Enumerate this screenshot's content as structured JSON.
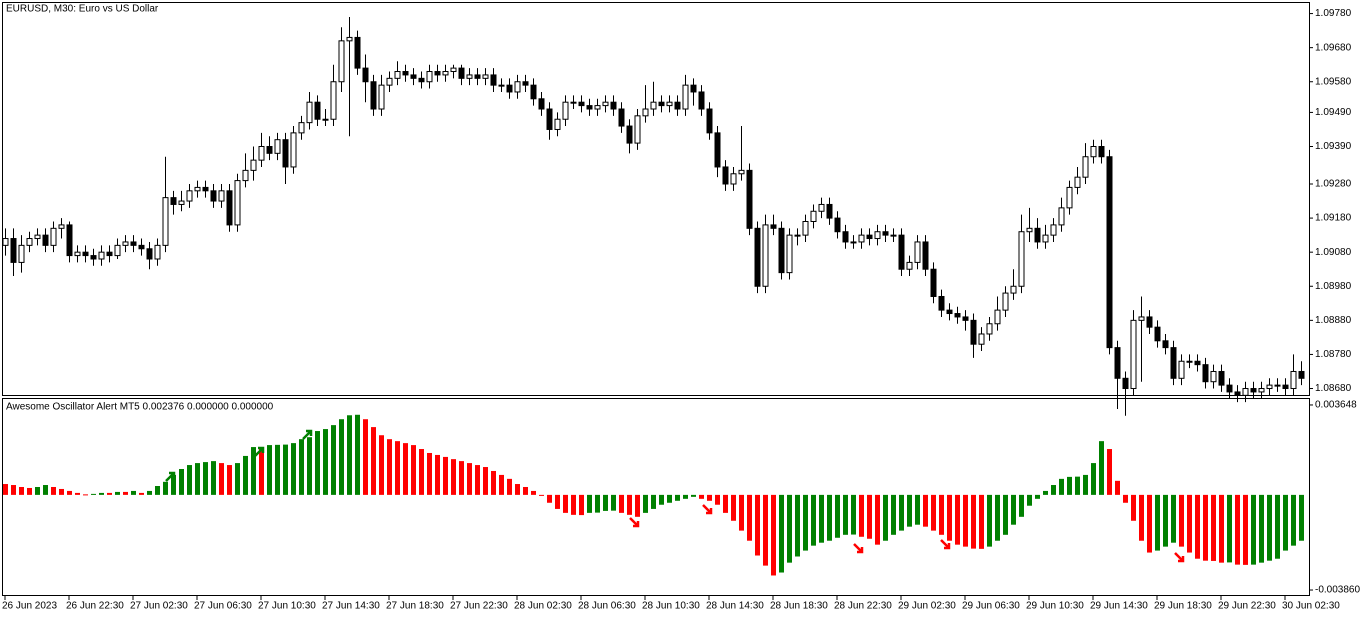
{
  "chart_data": [
    {
      "type": "candlestick",
      "title": "EURUSD, M30:  Euro vs US Dollar",
      "up_color": "#ffffff",
      "down_color": "#000000",
      "outline_color": "#000000",
      "ylim": [
        1.08661,
        1.09811
      ],
      "yticks": [
        {
          "value": 1.0978,
          "label": "1.09780"
        },
        {
          "value": 1.0968,
          "label": "1.09680"
        },
        {
          "value": 1.0958,
          "label": "1.09580"
        },
        {
          "value": 1.0949,
          "label": "1.09490"
        },
        {
          "value": 1.0939,
          "label": "1.09390"
        },
        {
          "value": 1.0928,
          "label": "1.09280"
        },
        {
          "value": 1.0918,
          "label": "1.09180"
        },
        {
          "value": 1.0908,
          "label": "1.09080"
        },
        {
          "value": 1.0898,
          "label": "1.08980"
        },
        {
          "value": 1.0888,
          "label": "1.08880"
        },
        {
          "value": 1.0878,
          "label": "1.08780"
        },
        {
          "value": 1.0868,
          "label": "1.08680"
        }
      ],
      "x_tick_labels": [
        "26 Jun 2023",
        "26 Jun 22:30",
        "27 Jun 02:30",
        "27 Jun 06:30",
        "27 Jun 10:30",
        "27 Jun 14:30",
        "27 Jun 18:30",
        "27 Jun 22:30",
        "28 Jun 02:30",
        "28 Jun 06:30",
        "28 Jun 10:30",
        "28 Jun 14:30",
        "28 Jun 18:30",
        "28 Jun 22:30",
        "29 Jun 02:30",
        "29 Jun 06:30",
        "29 Jun 10:30",
        "29 Jun 14:30",
        "29 Jun 18:30",
        "29 Jun 22:30",
        "30 Jun 02:30"
      ],
      "open": [
        1.091,
        1.0912,
        1.0905,
        1.091,
        1.0912,
        1.0913,
        1.091,
        1.0915,
        1.0916,
        1.0907,
        1.0908,
        1.0907,
        1.0906,
        1.0908,
        1.0907,
        1.091,
        1.0911,
        1.091,
        1.0909,
        1.0906,
        1.091,
        1.0924,
        1.0922,
        1.0923,
        1.0926,
        1.0927,
        1.0926,
        1.0923,
        1.0926,
        1.0916,
        1.0929,
        1.0932,
        1.0935,
        1.0939,
        1.0937,
        1.0941,
        1.0933,
        1.0943,
        1.0946,
        1.0952,
        1.0947,
        1.0947,
        1.0958,
        1.097,
        1.0971,
        1.0962,
        1.0958,
        1.095,
        1.0957,
        1.0959,
        1.0961,
        1.096,
        1.0959,
        1.0958,
        1.0961,
        1.096,
        1.0961,
        1.0962,
        1.0959,
        1.096,
        1.0959,
        1.096,
        1.0957,
        1.0957,
        1.0955,
        1.0958,
        1.0957,
        1.0953,
        1.095,
        1.0944,
        1.0947,
        1.0952,
        1.0952,
        1.0951,
        1.095,
        1.0951,
        1.0952,
        1.095,
        1.0945,
        1.094,
        1.0948,
        1.095,
        1.0952,
        1.0951,
        1.0952,
        1.095,
        1.0957,
        1.0955,
        1.095,
        1.0943,
        1.0933,
        1.0928,
        1.0931,
        1.0932,
        1.0915,
        1.0898,
        1.0916,
        1.0915,
        1.0902,
        1.0913,
        1.0913,
        1.0917,
        1.092,
        1.0922,
        1.0918,
        1.0914,
        1.0911,
        1.0911,
        1.0913,
        1.0912,
        1.0914,
        1.0913,
        1.0913,
        1.0903,
        1.0905,
        1.0911,
        1.0903,
        1.0895,
        1.0891,
        1.089,
        1.0889,
        1.0888,
        1.0881,
        1.0884,
        1.0887,
        1.0891,
        1.0896,
        1.0898,
        1.0914,
        1.0915,
        1.0911,
        1.0913,
        1.0916,
        1.0921,
        1.0927,
        1.093,
        1.0936,
        1.0939,
        1.0936,
        1.088,
        1.0871,
        1.0868,
        1.0888,
        1.0889,
        1.0886,
        1.0882,
        1.088,
        1.0871,
        1.0876,
        1.0876,
        1.0875,
        1.087,
        1.0873,
        1.0869,
        1.0867,
        1.0866,
        1.0868,
        1.0867,
        1.0868,
        1.0869,
        1.0869,
        1.0868,
        1.0873
      ],
      "high": [
        1.0915,
        1.0915,
        1.0913,
        1.0914,
        1.0915,
        1.0915,
        1.0917,
        1.0918,
        1.0917,
        1.091,
        1.091,
        1.0909,
        1.091,
        1.091,
        1.0912,
        1.0913,
        1.0913,
        1.0912,
        1.0911,
        1.0912,
        1.0936,
        1.0926,
        1.0926,
        1.0928,
        1.0929,
        1.0929,
        1.0928,
        1.0928,
        1.0928,
        1.0931,
        1.0937,
        1.0939,
        1.0943,
        1.0942,
        1.0943,
        1.0943,
        1.0945,
        1.0948,
        1.0955,
        1.0954,
        1.095,
        1.0963,
        1.0974,
        1.0977,
        1.0973,
        1.0966,
        1.096,
        1.096,
        1.0961,
        1.0964,
        1.0963,
        1.0962,
        1.0961,
        1.0963,
        1.0963,
        1.0963,
        1.0963,
        1.0963,
        1.0962,
        1.0962,
        1.0962,
        1.0962,
        1.0959,
        1.0959,
        1.096,
        1.096,
        1.0959,
        1.0955,
        1.0952,
        1.0949,
        1.0954,
        1.0954,
        1.0954,
        1.0953,
        1.0953,
        1.0954,
        1.0954,
        1.0952,
        1.0947,
        1.095,
        1.0957,
        1.0958,
        1.0954,
        1.0954,
        1.0954,
        1.096,
        1.0959,
        1.0957,
        1.0952,
        1.0945,
        1.0935,
        1.0933,
        1.0945,
        1.0934,
        1.0917,
        1.0919,
        1.0919,
        1.0917,
        1.0915,
        1.0915,
        1.0919,
        1.0922,
        1.0924,
        1.0924,
        1.092,
        1.0916,
        1.0913,
        1.0915,
        1.0915,
        1.0916,
        1.0916,
        1.0915,
        1.0915,
        1.0907,
        1.0913,
        1.0913,
        1.0905,
        1.0897,
        1.0893,
        1.0892,
        1.0891,
        1.089,
        1.0886,
        1.0889,
        1.0895,
        1.0898,
        1.0903,
        1.0919,
        1.0921,
        1.0918,
        1.0916,
        1.0918,
        1.0924,
        1.0929,
        1.0933,
        1.094,
        1.0941,
        1.0941,
        1.0938,
        1.0882,
        1.0873,
        1.0891,
        1.0895,
        1.0891,
        1.0888,
        1.0884,
        1.0882,
        1.0878,
        1.0878,
        1.0878,
        1.0877,
        1.0875,
        1.0875,
        1.0871,
        1.0869,
        1.087,
        1.087,
        1.087,
        1.0871,
        1.0871,
        1.0871,
        1.0878,
        1.0876
      ],
      "low": [
        1.0907,
        1.0901,
        1.0902,
        1.0908,
        1.091,
        1.0908,
        1.0908,
        1.0912,
        1.0905,
        1.0905,
        1.0905,
        1.0904,
        1.0904,
        1.0905,
        1.0906,
        1.0908,
        1.0908,
        1.0907,
        1.0903,
        1.0904,
        1.0908,
        1.0919,
        1.092,
        1.0921,
        1.0924,
        1.0924,
        1.0921,
        1.0921,
        1.0914,
        1.0914,
        1.0927,
        1.0929,
        1.0933,
        1.0935,
        1.0935,
        1.0928,
        1.0931,
        1.0941,
        1.0944,
        1.0945,
        1.0945,
        1.0945,
        1.0955,
        1.0942,
        1.096,
        1.0952,
        1.0948,
        1.0948,
        1.0955,
        1.0957,
        1.0958,
        1.0957,
        1.0956,
        1.0956,
        1.0958,
        1.0958,
        1.0959,
        1.0957,
        1.0957,
        1.0957,
        1.0957,
        1.0955,
        1.0955,
        1.0953,
        1.0953,
        1.0955,
        1.0951,
        1.0948,
        1.0941,
        1.0942,
        1.0945,
        1.095,
        1.0949,
        1.0948,
        1.0948,
        1.0949,
        1.0948,
        1.0943,
        1.0937,
        1.0938,
        1.0946,
        1.0948,
        1.0949,
        1.0949,
        1.0948,
        1.0948,
        1.0951,
        1.0948,
        1.0941,
        1.093,
        1.0926,
        1.0926,
        1.0929,
        1.0913,
        1.0896,
        1.0896,
        1.0913,
        1.09,
        1.09,
        1.091,
        1.0911,
        1.0915,
        1.0918,
        1.0916,
        1.0912,
        1.0909,
        1.0909,
        1.0909,
        1.091,
        1.091,
        1.0911,
        1.0911,
        1.0901,
        1.0901,
        1.0903,
        1.0901,
        1.0893,
        1.0889,
        1.0888,
        1.0887,
        1.0885,
        1.0877,
        1.0879,
        1.0882,
        1.0885,
        1.0889,
        1.0894,
        1.0896,
        1.0911,
        1.0909,
        1.0909,
        1.0911,
        1.0914,
        1.0919,
        1.0925,
        1.0928,
        1.0934,
        1.0934,
        1.0878,
        1.0862,
        1.086,
        1.0866,
        1.087,
        1.0884,
        1.088,
        1.0878,
        1.0869,
        1.0869,
        1.0874,
        1.0873,
        1.0868,
        1.0868,
        1.0867,
        1.0865,
        1.0864,
        1.0864,
        1.0865,
        1.0865,
        1.0866,
        1.0867,
        1.0866,
        1.0866,
        1.0869
      ],
      "close": [
        1.0912,
        1.0905,
        1.091,
        1.0912,
        1.0913,
        1.091,
        1.0915,
        1.0916,
        1.0907,
        1.0908,
        1.0907,
        1.0906,
        1.0908,
        1.0907,
        1.091,
        1.0911,
        1.091,
        1.0909,
        1.0906,
        1.091,
        1.0924,
        1.0922,
        1.0923,
        1.0926,
        1.0927,
        1.0926,
        1.0923,
        1.0926,
        1.0916,
        1.0929,
        1.0932,
        1.0935,
        1.0939,
        1.0937,
        1.0941,
        1.0933,
        1.0943,
        1.0946,
        1.0952,
        1.0947,
        1.0947,
        1.0958,
        1.097,
        1.0971,
        1.0962,
        1.0958,
        1.095,
        1.0957,
        1.0959,
        1.0961,
        1.096,
        1.0959,
        1.0958,
        1.0961,
        1.096,
        1.0961,
        1.0962,
        1.0959,
        1.096,
        1.0959,
        1.096,
        1.0957,
        1.0957,
        1.0955,
        1.0958,
        1.0957,
        1.0953,
        1.095,
        1.0944,
        1.0947,
        1.0952,
        1.0952,
        1.0951,
        1.095,
        1.0951,
        1.0952,
        1.095,
        1.0945,
        1.094,
        1.0948,
        1.095,
        1.0952,
        1.0951,
        1.0952,
        1.095,
        1.0957,
        1.0955,
        1.095,
        1.0943,
        1.0933,
        1.0928,
        1.0931,
        1.0932,
        1.0915,
        1.0898,
        1.0916,
        1.0915,
        1.0902,
        1.0913,
        1.0913,
        1.0917,
        1.092,
        1.0922,
        1.0918,
        1.0914,
        1.0911,
        1.0911,
        1.0913,
        1.0912,
        1.0914,
        1.0913,
        1.0913,
        1.0903,
        1.0905,
        1.0911,
        1.0903,
        1.0895,
        1.0891,
        1.089,
        1.0889,
        1.0888,
        1.0881,
        1.0884,
        1.0887,
        1.0891,
        1.0896,
        1.0898,
        1.0914,
        1.0915,
        1.0911,
        1.0913,
        1.0916,
        1.0921,
        1.0927,
        1.093,
        1.0936,
        1.0939,
        1.0936,
        1.088,
        1.0871,
        1.0868,
        1.0888,
        1.0889,
        1.0886,
        1.0882,
        1.088,
        1.0871,
        1.0876,
        1.0876,
        1.0875,
        1.087,
        1.0873,
        1.0869,
        1.0867,
        1.0866,
        1.0868,
        1.0867,
        1.0868,
        1.0869,
        1.0869,
        1.0868,
        1.0873,
        1.0871
      ]
    },
    {
      "type": "bar",
      "title": "Awesome Oscillator Alert MT5 0.002376 0.000000 0.000000",
      "up_color": "#008000",
      "down_color": "#ff0000",
      "ylim": [
        -0.004062,
        0.00389
      ],
      "yticks": [
        0.003648,
        {
          "value": -0.00386,
          "label": "-0.003860"
        }
      ],
      "values": [
        0.00044,
        0.0004,
        0.00032,
        0.00028,
        0.00032,
        0.0004,
        0.00032,
        0.00024,
        0.00016,
        8e-05,
        2e-05,
        4e-05,
        8e-05,
        8e-05,
        0.00012,
        0.00012,
        0.00016,
        8e-05,
        0.00016,
        0.00036,
        0.00053,
        0.00081,
        0.00105,
        0.00121,
        0.00129,
        0.00133,
        0.00137,
        0.00129,
        0.00121,
        0.00129,
        0.00158,
        0.00194,
        0.00194,
        0.00202,
        0.00203,
        0.00204,
        0.0021,
        0.00226,
        0.00234,
        0.00259,
        0.00267,
        0.00283,
        0.00307,
        0.00323,
        0.00325,
        0.00307,
        0.00275,
        0.00242,
        0.00226,
        0.00218,
        0.0021,
        0.00202,
        0.00186,
        0.0017,
        0.00162,
        0.00154,
        0.00145,
        0.00137,
        0.00129,
        0.00121,
        0.00113,
        0.00097,
        0.00081,
        0.00065,
        0.00044,
        0.00032,
        0.00016,
        -4e-05,
        -0.00032,
        -0.00057,
        -0.00073,
        -0.00081,
        -0.00082,
        -0.00073,
        -0.00072,
        -0.00065,
        -0.00064,
        -0.00073,
        -0.00081,
        -0.00089,
        -0.00073,
        -0.00057,
        -0.0004,
        -0.00032,
        -0.00024,
        -0.00016,
        -8e-05,
        -0.00016,
        -0.00024,
        -0.0004,
        -0.00073,
        -0.00105,
        -0.00145,
        -0.00186,
        -0.00246,
        -0.00287,
        -0.00327,
        -0.00315,
        -0.00275,
        -0.0025,
        -0.00226,
        -0.00206,
        -0.00194,
        -0.00186,
        -0.00174,
        -0.00162,
        -0.00161,
        -0.0017,
        -0.00178,
        -0.00202,
        -0.00186,
        -0.00162,
        -0.00145,
        -0.00129,
        -0.00121,
        -0.00129,
        -0.00145,
        -0.00162,
        -0.00186,
        -0.00202,
        -0.0021,
        -0.00218,
        -0.00219,
        -0.0021,
        -0.00186,
        -0.00162,
        -0.00121,
        -0.00089,
        -0.00044,
        -0.00016,
        0.00016,
        0.0004,
        0.00065,
        0.00073,
        0.00074,
        0.00081,
        0.00129,
        0.00218,
        0.00186,
        0.00057,
        -0.00032,
        -0.00105,
        -0.00186,
        -0.00234,
        -0.00226,
        -0.0021,
        -0.00194,
        -0.0021,
        -0.00234,
        -0.00259,
        -0.00267,
        -0.00268,
        -0.00275,
        -0.00274,
        -0.00283,
        -0.00284,
        -0.00283,
        -0.00275,
        -0.00267,
        -0.00259,
        -0.00226,
        -0.00206,
        -0.00186
      ]
    }
  ]
}
